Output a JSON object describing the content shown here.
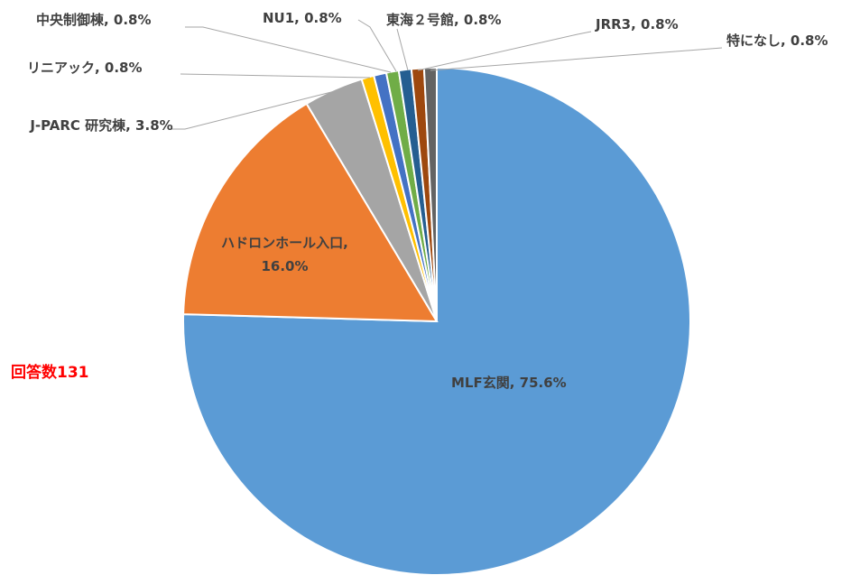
{
  "chart_data": {
    "type": "pie",
    "values": [
      75.6,
      16.0,
      3.8,
      0.8,
      0.8,
      0.8,
      0.8,
      0.8,
      0.8
    ],
    "value_labels": [
      "MLF玄関, 75.6%",
      "ハドロンホール入口, 16.0%",
      "J-PARC 研究棟, 3.8%",
      "リニアック, 0.8%",
      "中央制御棟, 0.8%",
      "NU1, 0.8%",
      "東海２号館, 0.8%",
      "JRR3, 0.8%",
      "特になし, 0.8%"
    ],
    "colors": [
      "#5b9bd5",
      "#ed7d31",
      "#a5a5a5",
      "#ffc000",
      "#4472c4",
      "#70ad47",
      "#255e91",
      "#9e480e",
      "#636363"
    ],
    "annotation": "回答数131"
  }
}
